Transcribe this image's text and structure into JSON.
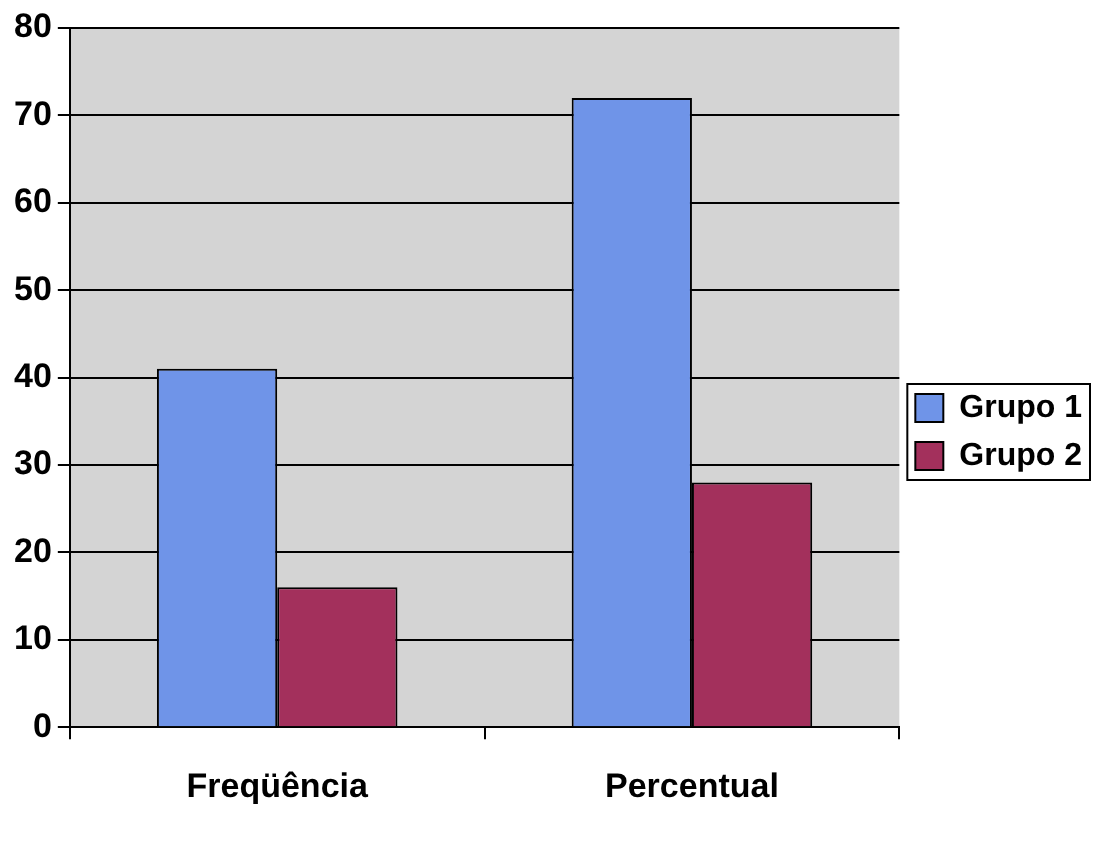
{
  "chart_data": {
    "type": "bar",
    "categories": [
      "Freqüência",
      "Percentual"
    ],
    "series": [
      {
        "name": "Grupo 1",
        "color": "#6f94e8",
        "values": [
          41,
          72
        ]
      },
      {
        "name": "Grupo 2",
        "color": "#a3305c",
        "values": [
          16,
          28
        ]
      }
    ],
    "ylim": [
      0,
      80
    ],
    "yticks": [
      0,
      10,
      20,
      30,
      40,
      50,
      60,
      70,
      80
    ],
    "grid": "y",
    "legend": "right"
  }
}
